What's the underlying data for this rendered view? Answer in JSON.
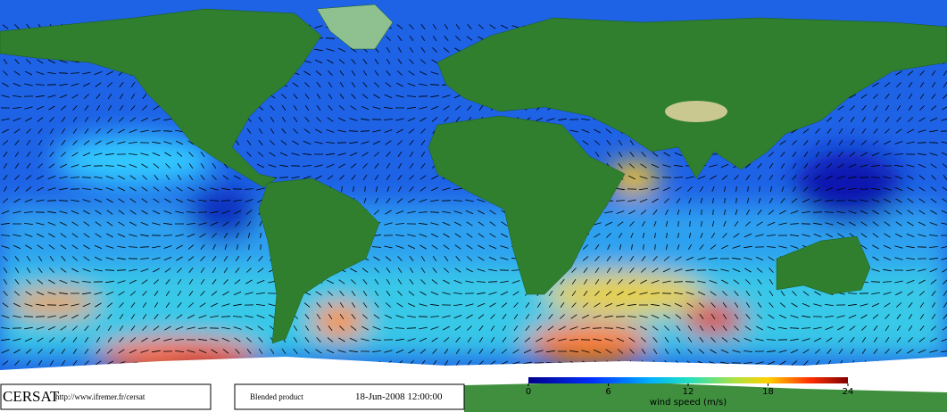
{
  "logo": "CERSAT",
  "url": "http://www.ifremer.fr/cersat",
  "product": "Blended product",
  "date": "18-Jun-2008 12:00:00",
  "colorbar": {
    "range": [
      0,
      24
    ],
    "ticks": [
      0,
      6,
      12,
      18,
      24
    ],
    "label": "wind speed (m/s)"
  }
}
